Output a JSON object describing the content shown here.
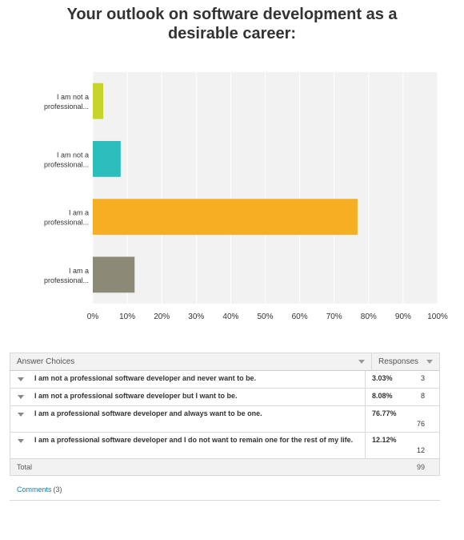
{
  "title": "Your outlook on software development as a desirable career:",
  "chart_data": {
    "type": "bar",
    "orientation": "horizontal",
    "categories": [
      [
        "I am not a",
        "professional..."
      ],
      [
        "I am not a",
        "professional..."
      ],
      [
        "I am a",
        "professional..."
      ],
      [
        "I am a",
        "professional..."
      ]
    ],
    "values": [
      3.03,
      8.08,
      76.77,
      12.12
    ],
    "colors": [
      "#c5d52d",
      "#2cbdbd",
      "#f6ae22",
      "#8a8a76"
    ],
    "xlim": [
      0,
      100
    ],
    "xticks": [
      "0%",
      "10%",
      "20%",
      "30%",
      "40%",
      "50%",
      "60%",
      "70%",
      "80%",
      "90%",
      "100%"
    ],
    "grid": true
  },
  "table": {
    "header_choice": "Answer Choices",
    "header_responses": "Responses",
    "rows": [
      {
        "label": "I am not a professional software developer and never want to be.",
        "pct": "3.03%",
        "count": "3"
      },
      {
        "label": "I am not a professional software developer but I want to be.",
        "pct": "8.08%",
        "count": "8"
      },
      {
        "label": "I am a professional software developer and always want to be one.",
        "pct": "76.77%",
        "count": "76"
      },
      {
        "label": "I am a professional software developer and I do not want to remain one for the rest of my life.",
        "pct": "12.12%",
        "count": "12"
      }
    ],
    "total_label": "Total",
    "total_value": "99"
  },
  "comments": {
    "label": "Comments",
    "count": "(3)"
  }
}
